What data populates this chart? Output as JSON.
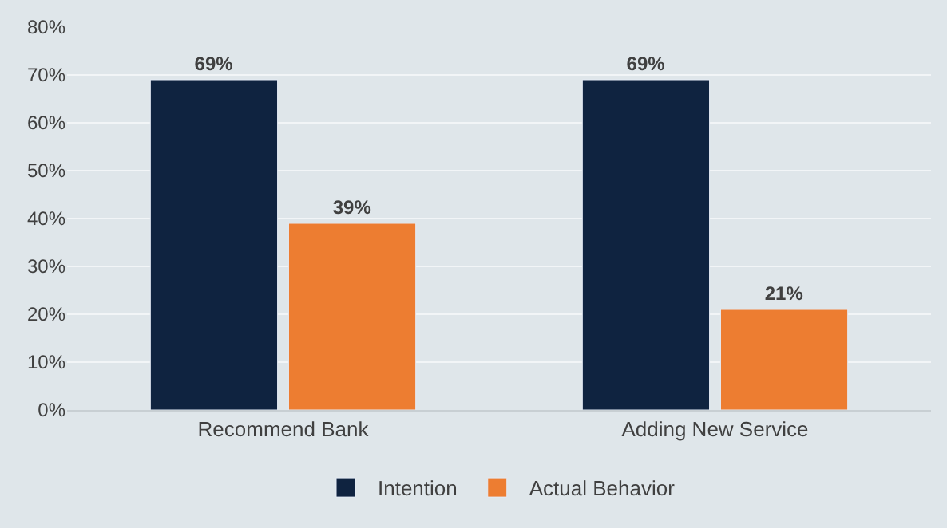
{
  "chart_data": {
    "type": "bar",
    "categories": [
      "Recommend Bank",
      "Adding New Service"
    ],
    "series": [
      {
        "name": "Intention",
        "color": "#0f2340",
        "values": [
          69,
          69
        ],
        "value_labels": [
          "69%",
          "69%"
        ]
      },
      {
        "name": "Actual Behavior",
        "color": "#ed7d31",
        "values": [
          39,
          21
        ],
        "value_labels": [
          "39%",
          "21%"
        ]
      }
    ],
    "ylim": [
      0,
      80
    ],
    "yticks": [
      {
        "value": 0,
        "label": "0%"
      },
      {
        "value": 10,
        "label": "10%"
      },
      {
        "value": 20,
        "label": "20%"
      },
      {
        "value": 30,
        "label": "30%"
      },
      {
        "value": 40,
        "label": "40%"
      },
      {
        "value": 50,
        "label": "50%"
      },
      {
        "value": 60,
        "label": "60%"
      },
      {
        "value": 70,
        "label": "70%"
      },
      {
        "value": 80,
        "label": "80%"
      }
    ],
    "grid": "y",
    "legend": "bottom"
  }
}
